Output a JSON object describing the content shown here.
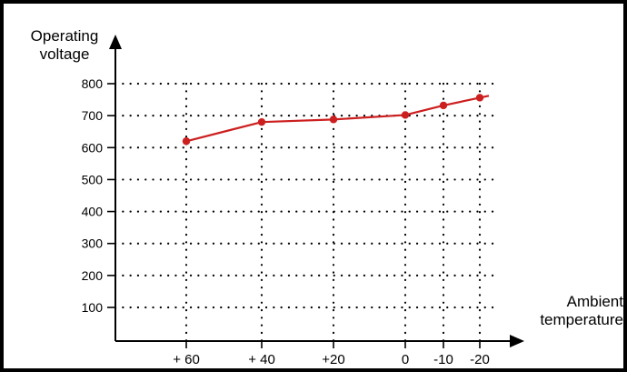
{
  "chart_data": {
    "type": "line",
    "ylabel_line1": "Operating",
    "ylabel_line2": "voltage",
    "xlabel_line1": "Ambient",
    "xlabel_line2": "temperature",
    "x_tick_labels": [
      "+ 60",
      "+ 40",
      "+20",
      "0",
      "-10",
      "-20"
    ],
    "x_values": [
      60,
      40,
      20,
      0,
      -10,
      -20
    ],
    "y_ticks": [
      100,
      200,
      300,
      400,
      500,
      600,
      700,
      800
    ],
    "ylim": [
      0,
      800
    ],
    "series": [
      {
        "x": [
          60,
          40,
          20,
          0,
          -10,
          -20
        ],
        "y": [
          620,
          680,
          688,
          702,
          732,
          756
        ],
        "color": "#cc1f1f"
      }
    ],
    "line_extends_past_last_point": true,
    "grid": "dotted",
    "axis_color": "#000000",
    "grid_color": "#000000"
  }
}
